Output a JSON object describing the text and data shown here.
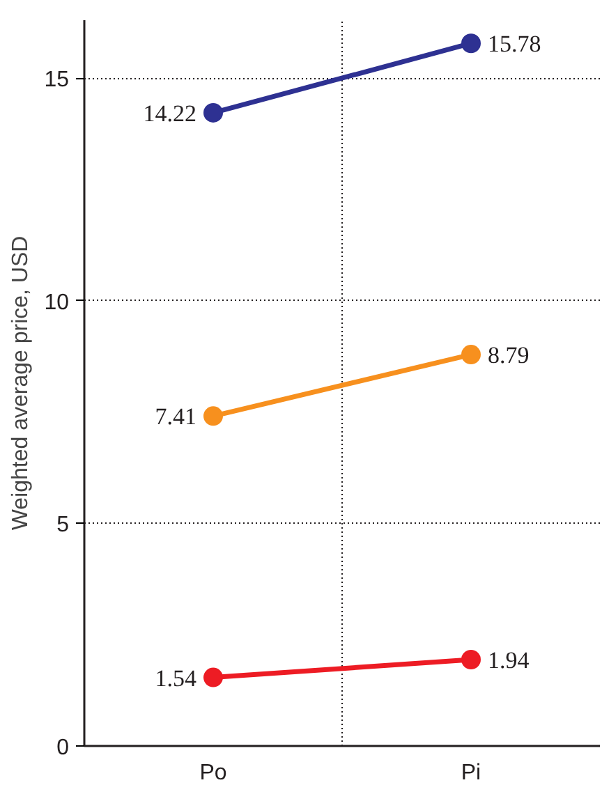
{
  "chart_data": {
    "type": "line",
    "ylabel": "Weighted average price, USD",
    "categories": [
      "Po",
      "Pi"
    ],
    "series": [
      {
        "color": "#2e3192",
        "values": [
          14.22,
          15.78
        ]
      },
      {
        "color": "#f7901e",
        "values": [
          7.41,
          8.79
        ]
      },
      {
        "color": "#ed1c24",
        "values": [
          1.54,
          1.94
        ]
      }
    ],
    "ylim": [
      0,
      16.3
    ],
    "yticks": [
      0,
      5,
      10,
      15
    ],
    "grid": true,
    "marker": "circle",
    "line_style": "solid",
    "data_labels": true
  }
}
